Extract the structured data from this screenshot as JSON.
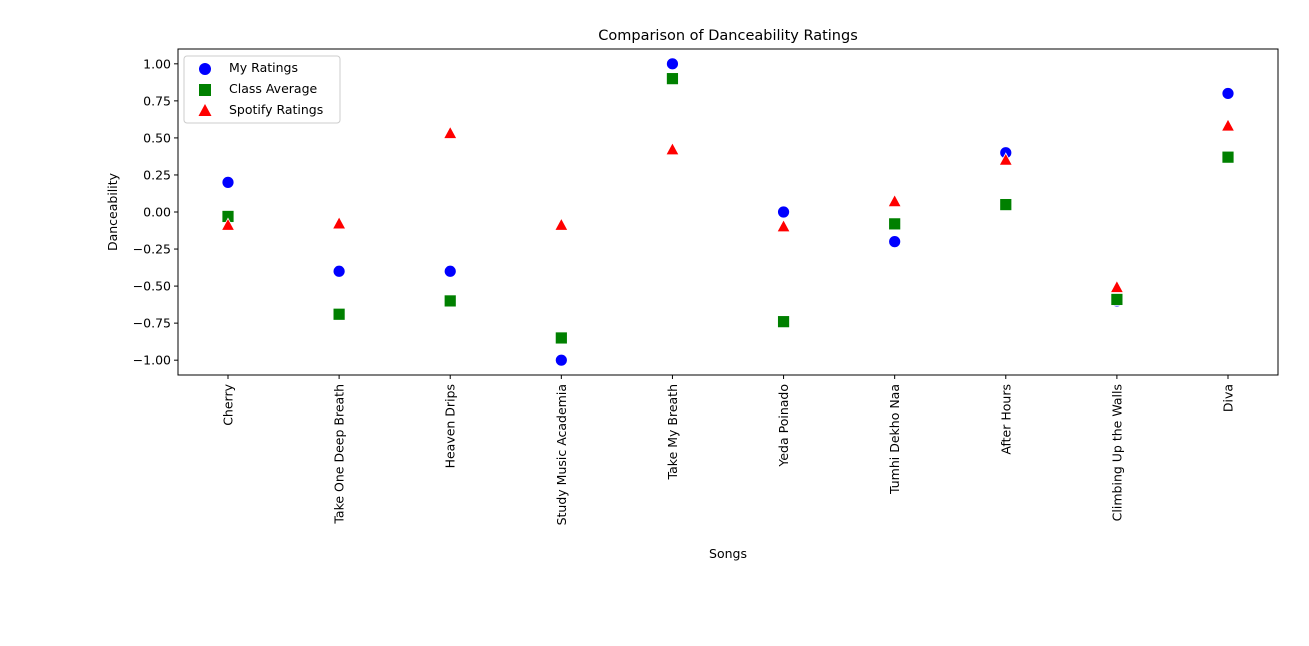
{
  "chart_data": {
    "type": "scatter",
    "title": "Comparison of Danceability Ratings",
    "xlabel": "Songs",
    "ylabel": "Danceability",
    "categories": [
      "Cherry",
      "Take One Deep Breath",
      "Heaven Drips",
      "Study Music Academia",
      "Take My Breath",
      "Yeda Poinado",
      "Tumhi Dekho Naa",
      "After Hours",
      "Climbing Up the Walls",
      "Diva"
    ],
    "ylim": [
      -1.1,
      1.1
    ],
    "yticks": [
      "1.00",
      "0.75",
      "0.50",
      "0.25",
      "0.00",
      "−0.25",
      "−0.50",
      "−0.75",
      "−1.00"
    ],
    "ytick_values": [
      1.0,
      0.75,
      0.5,
      0.25,
      0.0,
      -0.25,
      -0.5,
      -0.75,
      -1.0
    ],
    "grid": false,
    "legend_position": "top-left",
    "series": [
      {
        "name": "My Ratings",
        "marker": "circle",
        "color": "#0000ff",
        "values": [
          0.2,
          -0.4,
          -0.4,
          -1.0,
          1.0,
          0.0,
          -0.2,
          0.4,
          -0.6,
          0.8
        ]
      },
      {
        "name": "Class Average",
        "marker": "square",
        "color": "#008000",
        "values": [
          -0.03,
          -0.69,
          -0.6,
          -0.85,
          0.9,
          -0.74,
          -0.08,
          0.05,
          -0.59,
          0.37
        ]
      },
      {
        "name": "Spotify Ratings",
        "marker": "triangle",
        "color": "#ff0000",
        "values": [
          -0.09,
          -0.08,
          0.53,
          -0.09,
          0.42,
          -0.1,
          0.07,
          0.35,
          -0.51,
          0.58
        ]
      }
    ]
  }
}
